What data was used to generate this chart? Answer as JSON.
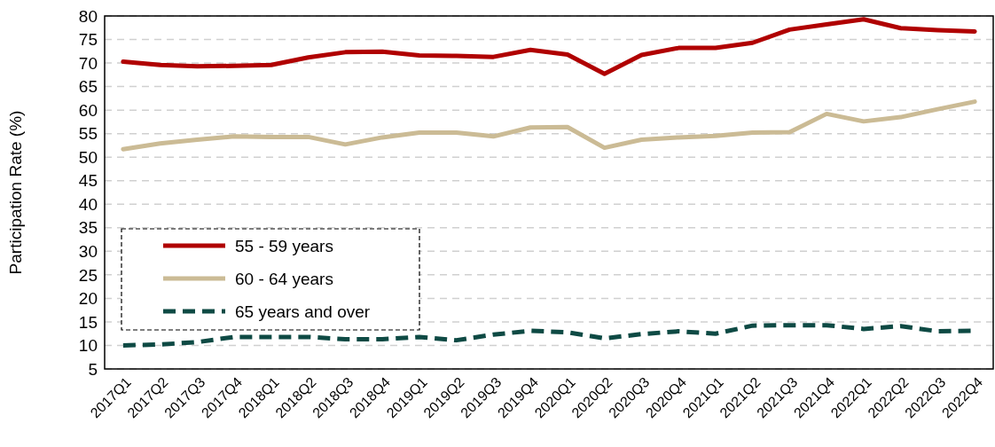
{
  "chart_data": {
    "type": "line",
    "ylabel": "Participation Rate (%)",
    "categories": [
      "2017Q1",
      "2017Q2",
      "2017Q3",
      "2017Q4",
      "2018Q1",
      "2018Q2",
      "2018Q3",
      "2018Q4",
      "2019Q1",
      "2019Q2",
      "2019Q3",
      "2019Q4",
      "2020Q1",
      "2020Q2",
      "2020Q3",
      "2020Q4",
      "2021Q1",
      "2021Q2",
      "2021Q3",
      "2021Q4",
      "2022Q1",
      "2022Q2",
      "2022Q3",
      "2022Q4"
    ],
    "series": [
      {
        "name": "55 - 59 years",
        "color": "#b00000",
        "line_style": "solid",
        "values": [
          70.3,
          69.6,
          69.3,
          69.4,
          69.6,
          71.2,
          72.3,
          72.4,
          71.6,
          71.5,
          71.3,
          72.8,
          71.8,
          67.7,
          71.7,
          73.2,
          73.2,
          74.3,
          77.1,
          78.2,
          79.3,
          77.4,
          77.0,
          76.7
        ]
      },
      {
        "name": "60 - 64 years",
        "color": "#cbbb95",
        "line_style": "solid",
        "values": [
          51.7,
          52.9,
          53.7,
          54.4,
          54.3,
          54.3,
          52.7,
          54.2,
          55.2,
          55.2,
          54.4,
          56.3,
          56.4,
          52.0,
          53.7,
          54.2,
          54.5,
          55.2,
          55.3,
          59.2,
          57.6,
          58.5,
          60.2,
          61.8
        ]
      },
      {
        "name": "65 years and over",
        "color": "#0e4a44",
        "line_style": "dashed",
        "values": [
          10.0,
          10.2,
          10.7,
          11.8,
          11.8,
          11.8,
          11.3,
          11.3,
          11.8,
          11.1,
          12.3,
          13.1,
          12.8,
          11.5,
          12.4,
          13.0,
          12.5,
          14.2,
          14.3,
          14.3,
          13.5,
          14.1,
          13.0,
          13.1
        ]
      }
    ],
    "ylim": [
      5,
      80
    ],
    "yticks": [
      5,
      10,
      15,
      20,
      25,
      30,
      35,
      40,
      45,
      50,
      55,
      60,
      65,
      70,
      75,
      80
    ],
    "grid": "y",
    "legend": "bottom left",
    "marker": "none"
  }
}
